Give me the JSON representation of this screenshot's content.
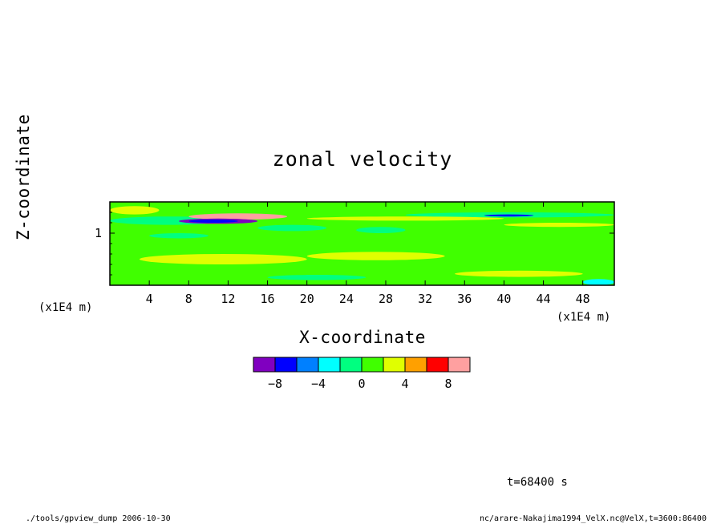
{
  "chart_data": {
    "type": "heatmap",
    "title": "zonal velocity",
    "xlabel": "X-coordinate",
    "ylabel": "Z-coordinate",
    "x_unit": "(x1E4 m)",
    "y_unit": "(x1E4 m)",
    "xlim": [
      0,
      51.2
    ],
    "ylim": [
      0.5,
      1.3
    ],
    "x_ticks": [
      4,
      8,
      12,
      16,
      20,
      24,
      28,
      32,
      36,
      40,
      44,
      48
    ],
    "y_ticks": [
      1
    ],
    "colorbar": {
      "levels": [
        -10,
        -8,
        -6,
        -4,
        -2,
        0,
        2,
        4,
        6,
        8,
        10
      ],
      "tick_labels": [
        -8,
        -4,
        0,
        4,
        8
      ],
      "colors": [
        "#8000c0",
        "#0000ff",
        "#0080ff",
        "#00ffff",
        "#00ff80",
        "#40ff00",
        "#e0ff00",
        "#ffa000",
        "#ff0000",
        "#ffa0a0"
      ]
    },
    "regions": [
      {
        "x": [
          0,
          51.2
        ],
        "z": [
          0.5,
          1.3
        ],
        "value": 1
      },
      {
        "x": [
          0,
          12
        ],
        "z": [
          1.08,
          1.16
        ],
        "value": -1
      },
      {
        "x": [
          8,
          18
        ],
        "z": [
          1.13,
          1.19
        ],
        "value": 9
      },
      {
        "x": [
          7,
          15
        ],
        "z": [
          1.09,
          1.14
        ],
        "value": -9
      },
      {
        "x": [
          8,
          13
        ],
        "z": [
          1.1,
          1.13
        ],
        "value": -7
      },
      {
        "x": [
          15,
          22
        ],
        "z": [
          1.02,
          1.08
        ],
        "value": -1
      },
      {
        "x": [
          25,
          30
        ],
        "z": [
          1.0,
          1.06
        ],
        "value": -1
      },
      {
        "x": [
          30,
          51.2
        ],
        "z": [
          1.15,
          1.2
        ],
        "value": -1
      },
      {
        "x": [
          38,
          43
        ],
        "z": [
          1.16,
          1.18
        ],
        "value": -7
      },
      {
        "x": [
          3,
          20
        ],
        "z": [
          0.7,
          0.8
        ],
        "value": 3
      },
      {
        "x": [
          20,
          34
        ],
        "z": [
          0.74,
          0.82
        ],
        "value": 3
      },
      {
        "x": [
          35,
          48
        ],
        "z": [
          0.58,
          0.64
        ],
        "value": 3
      },
      {
        "x": [
          40,
          51.2
        ],
        "z": [
          1.06,
          1.1
        ],
        "value": 3
      },
      {
        "x": [
          0,
          5
        ],
        "z": [
          1.18,
          1.26
        ],
        "value": 3
      },
      {
        "x": [
          20,
          40
        ],
        "z": [
          1.12,
          1.16
        ],
        "value": 3
      },
      {
        "x": [
          16,
          26
        ],
        "z": [
          0.55,
          0.6
        ],
        "value": -1
      },
      {
        "x": [
          4,
          10
        ],
        "z": [
          0.95,
          1.0
        ],
        "value": -1
      },
      {
        "x": [
          48,
          51.2
        ],
        "z": [
          0.5,
          0.56
        ],
        "value": -3
      }
    ]
  },
  "footer": {
    "time_label": "t=68400 s",
    "left_note": "./tools/gpview_dump  2006-10-30",
    "right_note": "nc/arare-Nakajima1994_VelX.nc@VelX,t=3600:86400"
  }
}
